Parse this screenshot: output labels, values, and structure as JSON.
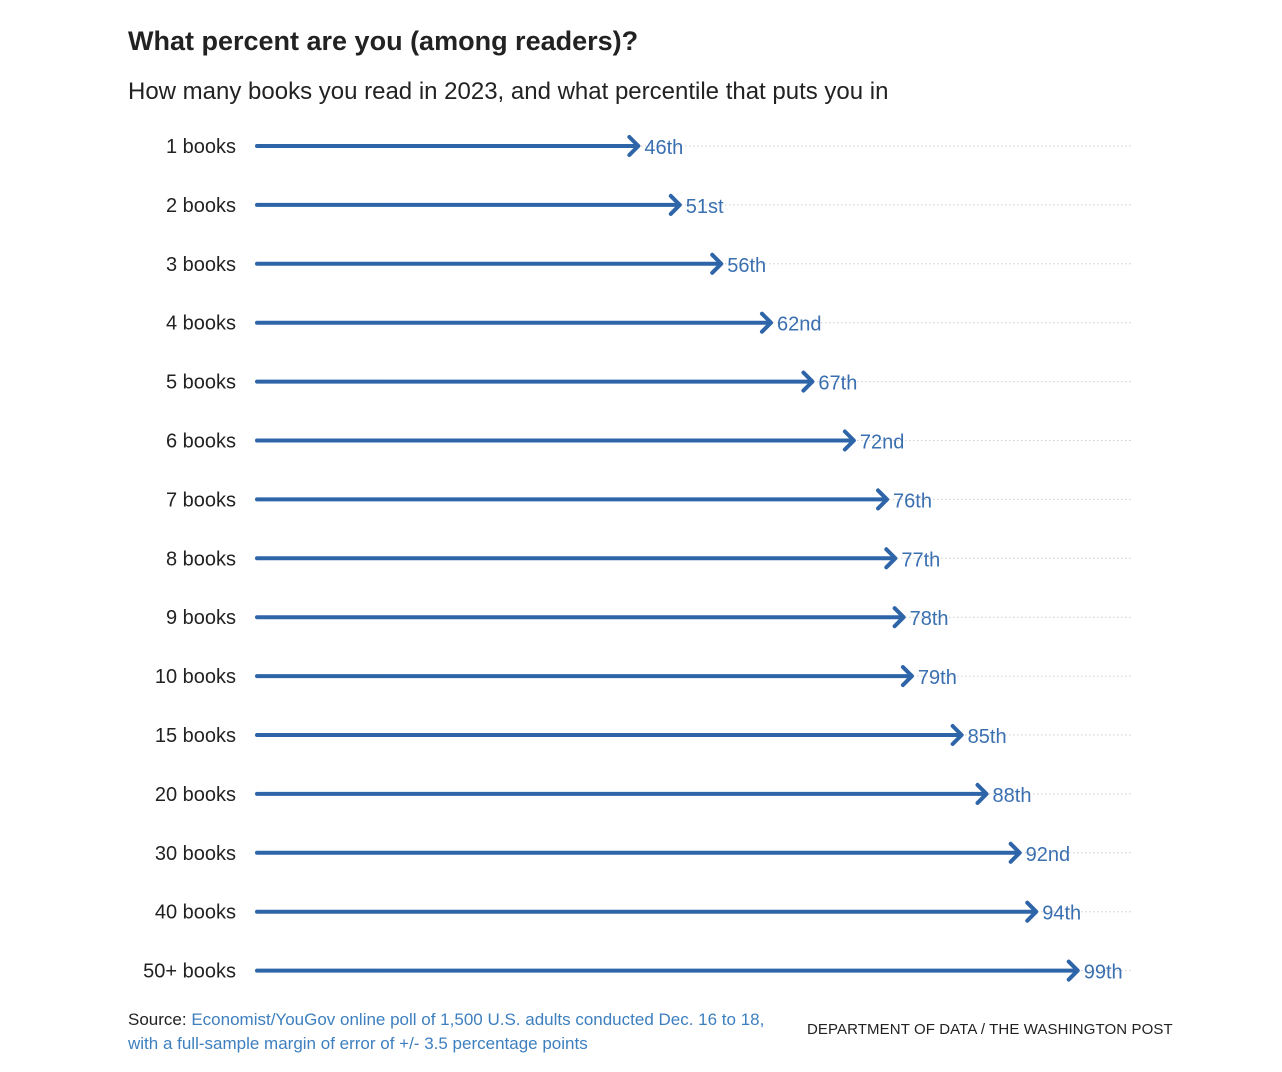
{
  "title": "What percent are you (among readers)?",
  "subtitle": "How many books you read in 2023, and what percentile that puts you in",
  "colors": {
    "arrow": "#2e64a8",
    "label": "#3a6fb0",
    "grid": "#cccccc",
    "source_link": "#3d7fbf"
  },
  "chart_data": {
    "type": "bar",
    "style": "arrow",
    "title": "What percent are you (among readers)?",
    "subtitle": "How many books you read in 2023, and what percentile that puts you in",
    "categories": [
      "1 books",
      "2 books",
      "3 books",
      "4 books",
      "5 books",
      "6 books",
      "7 books",
      "8 books",
      "9 books",
      "10 books",
      "15 books",
      "20 books",
      "30 books",
      "40 books",
      "50+ books"
    ],
    "values": [
      46,
      51,
      56,
      62,
      67,
      72,
      76,
      77,
      78,
      79,
      85,
      88,
      92,
      94,
      99
    ],
    "value_labels": [
      "46th",
      "51st",
      "56th",
      "62nd",
      "67th",
      "72nd",
      "76th",
      "77th",
      "78th",
      "79th",
      "85th",
      "88th",
      "92nd",
      "94th",
      "99th"
    ],
    "xlabel": "",
    "ylabel": "",
    "xlim": [
      0,
      100
    ],
    "grid": true
  },
  "footer": {
    "source_label": "Source:",
    "source_text": "Economist/YouGov online poll of 1,500 U.S. adults conducted Dec. 16 to 18, with a full-sample margin of error of +/- 3.5 percentage points",
    "credit": "DEPARTMENT OF DATA / THE WASHINGTON POST"
  }
}
